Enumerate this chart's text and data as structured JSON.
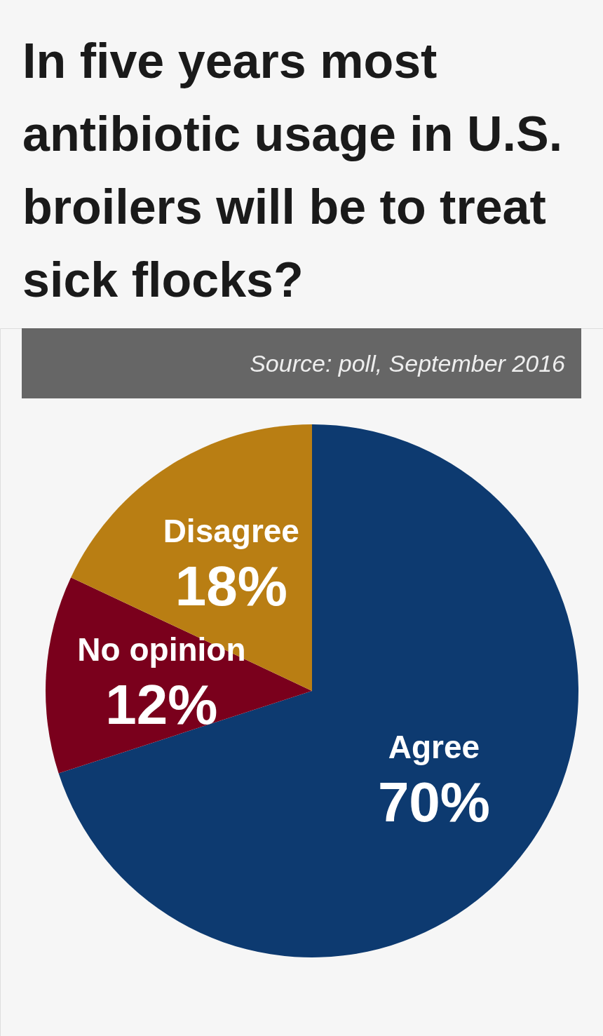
{
  "chart_data": {
    "type": "pie",
    "title": "In five years most antibiotic usage in U.S. broilers will be to treat sick flocks?",
    "annotations": [
      "Source: poll, September 2016"
    ],
    "categories": [
      "Agree",
      "No opinion",
      "Disagree"
    ],
    "values": [
      70,
      12,
      18
    ],
    "colors": [
      "#0d3a70",
      "#7a001c",
      "#b97e13"
    ],
    "value_labels": [
      "70%",
      "12%",
      "18%"
    ]
  }
}
